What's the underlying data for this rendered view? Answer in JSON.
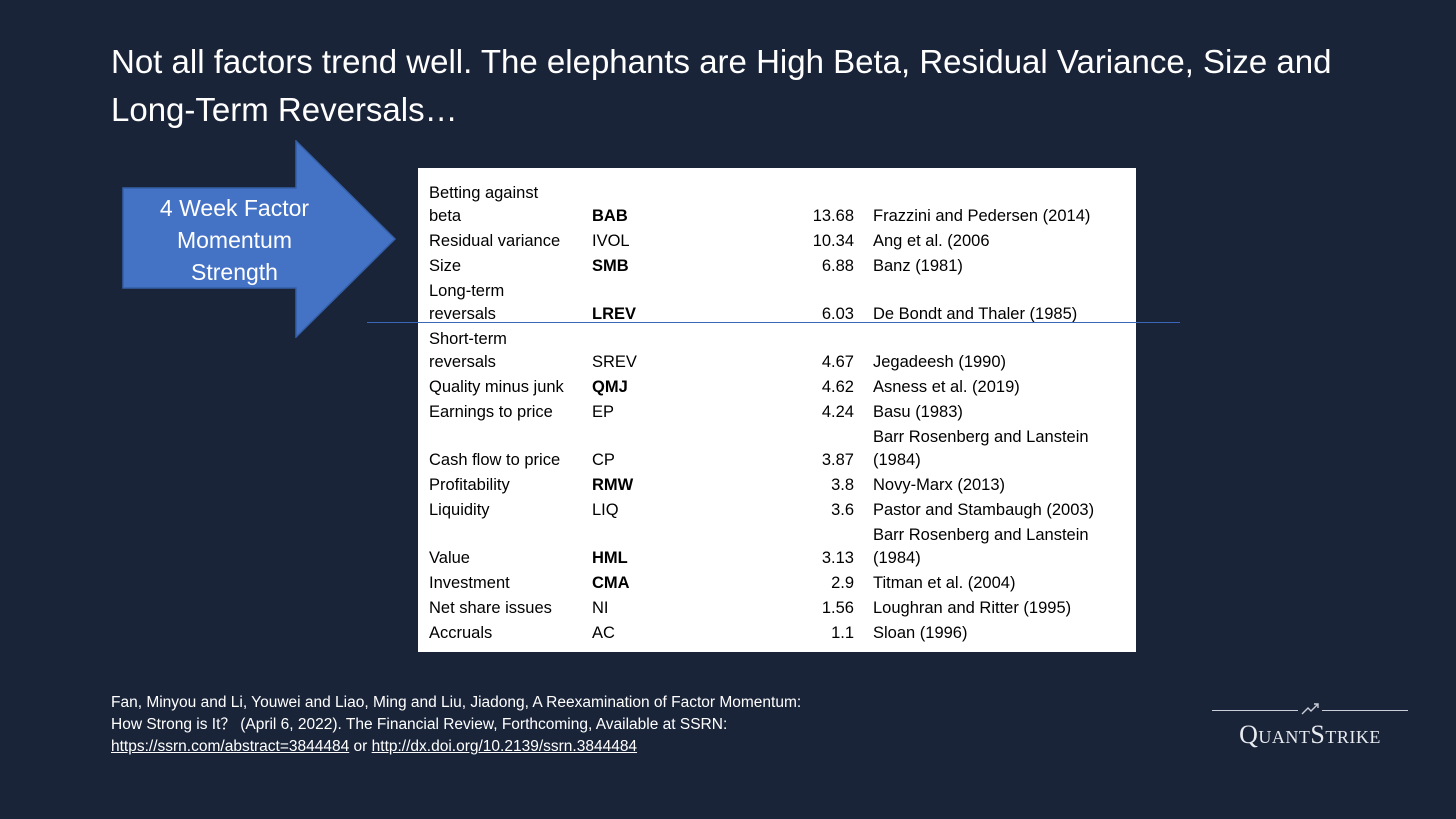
{
  "slide": {
    "title": "Not all factors trend well. The elephants are High Beta, Residual Variance, Size and Long-Term Reversals…"
  },
  "arrow": {
    "label_line1": "4 Week Factor",
    "label_line2": "Momentum",
    "label_line3": "Strength",
    "color": "#4472c4"
  },
  "table": {
    "rows": [
      {
        "name": "Betting against beta",
        "name_l1": "Betting against",
        "name_l2": "beta",
        "abbr": "BAB",
        "bold": true,
        "value": "13.68",
        "ref": "Frazzini and Pedersen (2014)"
      },
      {
        "name": "Residual variance",
        "abbr": "IVOL",
        "bold": false,
        "value": "10.34",
        "ref": "Ang et al. (2006"
      },
      {
        "name": "Size",
        "abbr": "SMB",
        "bold": true,
        "value": "6.88",
        "ref": "Banz (1981)"
      },
      {
        "name_l1": "Long-term",
        "name_l2": "reversals",
        "abbr": "LREV",
        "bold": true,
        "value": "6.03",
        "ref": "De Bondt and Thaler (1985)"
      },
      {
        "name_l1": "Short-term",
        "name_l2": "reversals",
        "abbr": "SREV",
        "bold": false,
        "value": "4.67",
        "ref": "Jegadeesh (1990)"
      },
      {
        "name": "Quality minus junk",
        "abbr": "QMJ",
        "bold": true,
        "value": "4.62",
        "ref": "Asness et al. (2019)"
      },
      {
        "name": "Earnings to price",
        "abbr": "EP",
        "bold": false,
        "value": "4.24",
        "ref": "Basu (1983)"
      },
      {
        "name": "Cash flow to price",
        "abbr": "CP",
        "bold": false,
        "value": "3.87",
        "ref_l1": "Barr Rosenberg and Lanstein",
        "ref_l2": "(1984)"
      },
      {
        "name": "Profitability",
        "abbr": "RMW",
        "bold": true,
        "value": "3.8",
        "ref": "Novy-Marx (2013)"
      },
      {
        "name": "Liquidity",
        "abbr": "LIQ",
        "bold": false,
        "value": "3.6",
        "ref": "Pastor and Stambaugh (2003)"
      },
      {
        "name": "Value",
        "abbr": "HML",
        "bold": true,
        "value": "3.13",
        "ref_l1": "Barr Rosenberg and Lanstein",
        "ref_l2": "(1984)"
      },
      {
        "name": "Investment",
        "abbr": "CMA",
        "bold": true,
        "value": "2.9",
        "ref": "Titman et al. (2004)"
      },
      {
        "name": "Net share issues",
        "abbr": "NI",
        "bold": false,
        "value": "1.56",
        "ref": "Loughran and Ritter (1995)"
      },
      {
        "name": "Accruals",
        "abbr": "AC",
        "bold": false,
        "value": "1.1",
        "ref": "Sloan (1996)"
      }
    ]
  },
  "citation": {
    "text": "Fan, Minyou and Li, Youwei and Liao, Ming and Liu, Jiadong, A Reexamination of Factor Momentum: How Strong is It？ (April 6, 2022). The Financial Review, Forthcoming, Available at SSRN: ",
    "link1": "https://ssrn.com/abstract=3844484",
    "between": " or ",
    "link2": "http://dx.doi.org/10.2139/ssrn.3844484"
  },
  "logo": {
    "text": "QuantStrike"
  }
}
